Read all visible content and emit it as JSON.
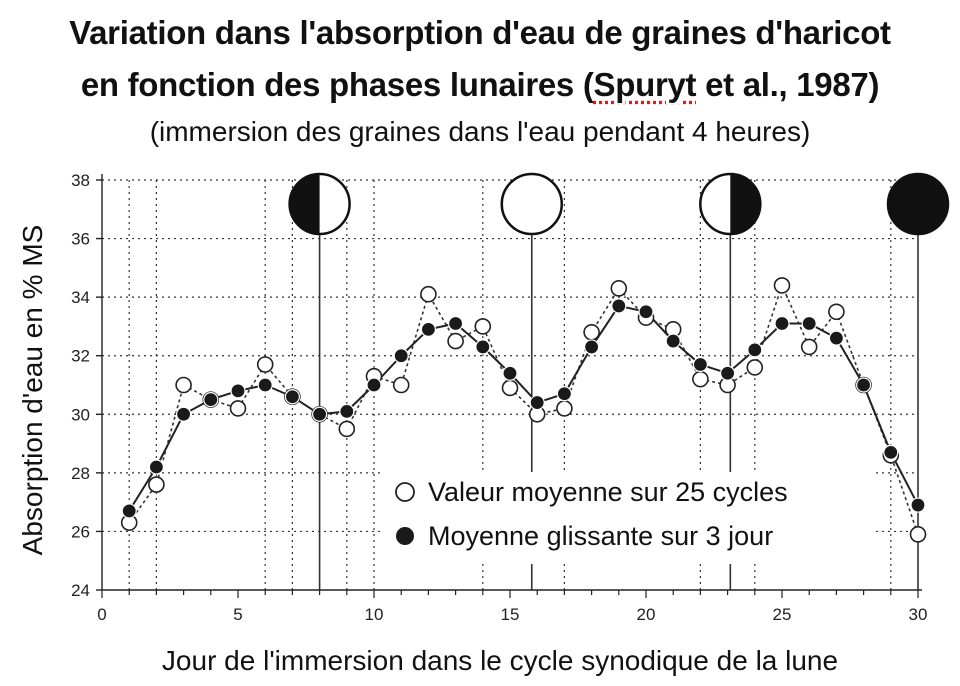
{
  "title": {
    "line1": "Variation dans l'absorption d'eau de graines d'haricot",
    "line2_pre": "en fonction des phases lunaires (",
    "line2_cite": "Spuryt",
    "line2_post": " et al., 1987)",
    "subtitle": "(immersion des graines dans l'eau pendant 4 heures)"
  },
  "chart_data": {
    "type": "line",
    "xlabel": "Jour de l'immersion dans le cycle synodique de la lune",
    "ylabel": "Absorption d'eau en % MS",
    "xlim": [
      0,
      30
    ],
    "ylim": [
      24,
      38
    ],
    "xticks": [
      0,
      5,
      10,
      15,
      20,
      25,
      30
    ],
    "yticks": [
      24,
      26,
      28,
      30,
      32,
      34,
      36,
      38
    ],
    "grid": "dotted vertical and horizontal lines",
    "legend_position": "lower-right",
    "series": [
      {
        "name": "Valeur moyenne sur 25 cycles",
        "marker": "open-circle",
        "line_style": "dotted",
        "x": [
          1,
          2,
          3,
          4,
          5,
          6,
          7,
          8,
          9,
          10,
          11,
          12,
          13,
          14,
          15,
          16,
          17,
          18,
          19,
          20,
          21,
          22,
          23,
          24,
          25,
          26,
          27,
          28,
          29,
          30
        ],
        "y": [
          26.3,
          27.6,
          31.0,
          30.5,
          30.2,
          31.7,
          30.6,
          30.0,
          29.5,
          31.3,
          31.0,
          34.1,
          32.5,
          33.0,
          30.9,
          30.0,
          30.2,
          32.8,
          34.3,
          33.3,
          32.9,
          31.2,
          31.0,
          31.6,
          34.4,
          32.3,
          33.5,
          31.0,
          28.6,
          25.9
        ]
      },
      {
        "name": "Moyenne glissante sur 3 jour",
        "marker": "filled-circle",
        "line_style": "solid",
        "x": [
          1,
          2,
          3,
          4,
          5,
          6,
          7,
          8,
          9,
          10,
          11,
          12,
          13,
          14,
          15,
          16,
          17,
          18,
          19,
          20,
          21,
          22,
          23,
          24,
          25,
          26,
          27,
          28,
          29,
          30
        ],
        "y": [
          26.7,
          28.2,
          30.0,
          30.5,
          30.8,
          31.0,
          30.6,
          30.0,
          30.1,
          31.0,
          32.0,
          32.9,
          33.1,
          32.3,
          31.4,
          30.4,
          30.7,
          32.3,
          33.7,
          33.5,
          32.5,
          31.7,
          31.4,
          32.2,
          33.1,
          33.1,
          32.6,
          31.0,
          28.7,
          26.9
        ]
      }
    ],
    "moon_phases": [
      {
        "day": 8,
        "phase": "first-quarter",
        "icon": "moon-first-quarter-icon"
      },
      {
        "day": 15.8,
        "phase": "full-moon",
        "icon": "moon-full-icon"
      },
      {
        "day": 23.1,
        "phase": "last-quarter",
        "icon": "moon-last-quarter-icon"
      },
      {
        "day": 30,
        "phase": "new-moon",
        "icon": "moon-new-icon"
      }
    ],
    "vertical_guides_dotted": [
      1,
      2,
      6,
      7,
      9,
      10,
      14,
      17,
      22,
      24,
      29
    ]
  }
}
